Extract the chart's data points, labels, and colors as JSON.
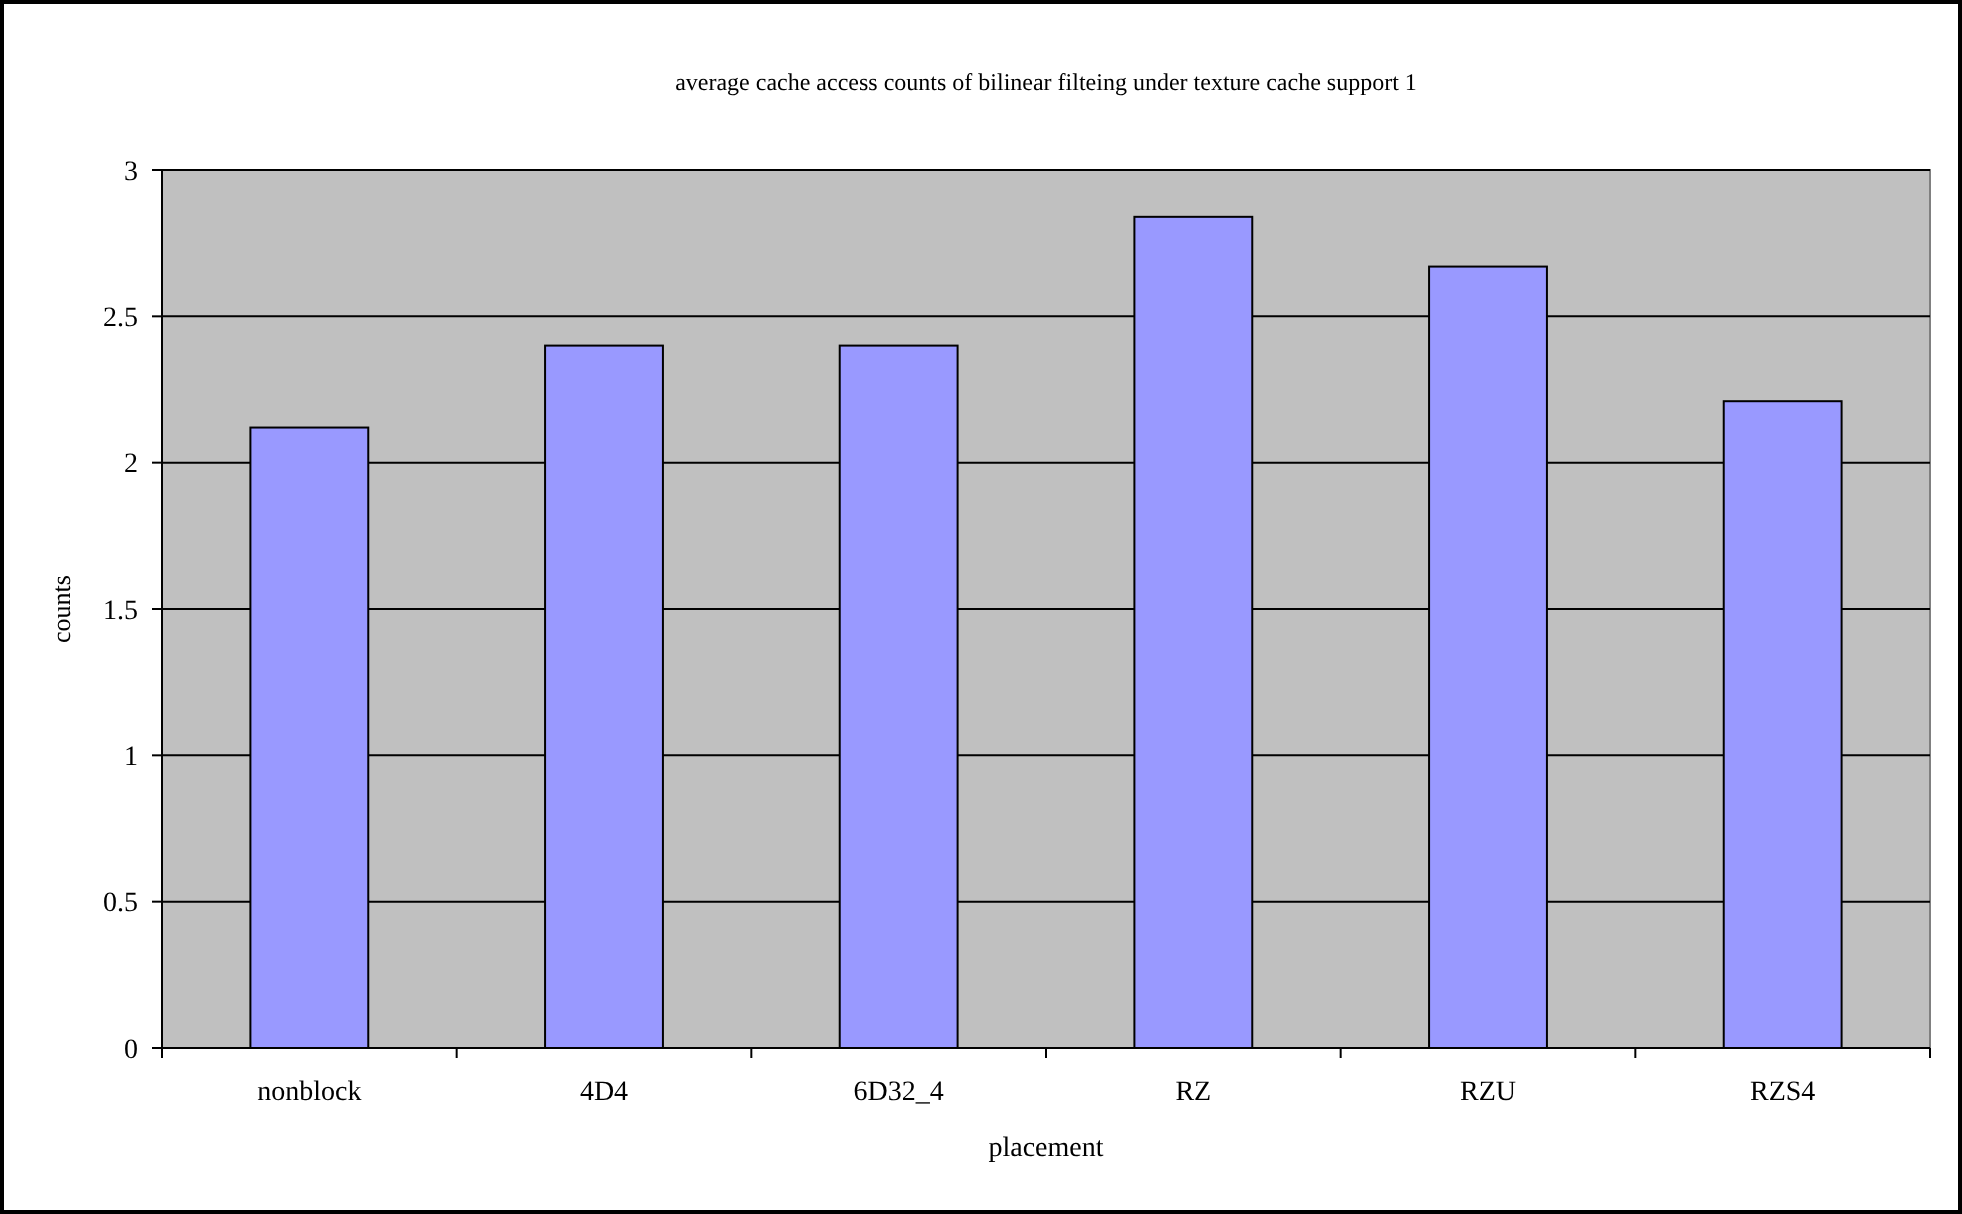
{
  "chart_data": {
    "type": "bar",
    "title": "average cache access counts of bilinear filteing under texture cache support 1",
    "xlabel": "placement",
    "ylabel": "counts",
    "categories": [
      "nonblock",
      "4D4",
      "6D32_4",
      "RZ",
      "RZU",
      "RZS4"
    ],
    "values": [
      2.12,
      2.4,
      2.4,
      2.84,
      2.67,
      2.21
    ],
    "color": "#9999ff",
    "ylim": [
      0,
      3
    ],
    "yticks": [
      0,
      0.5,
      1,
      1.5,
      2,
      2.5,
      3
    ],
    "grid": "y"
  }
}
